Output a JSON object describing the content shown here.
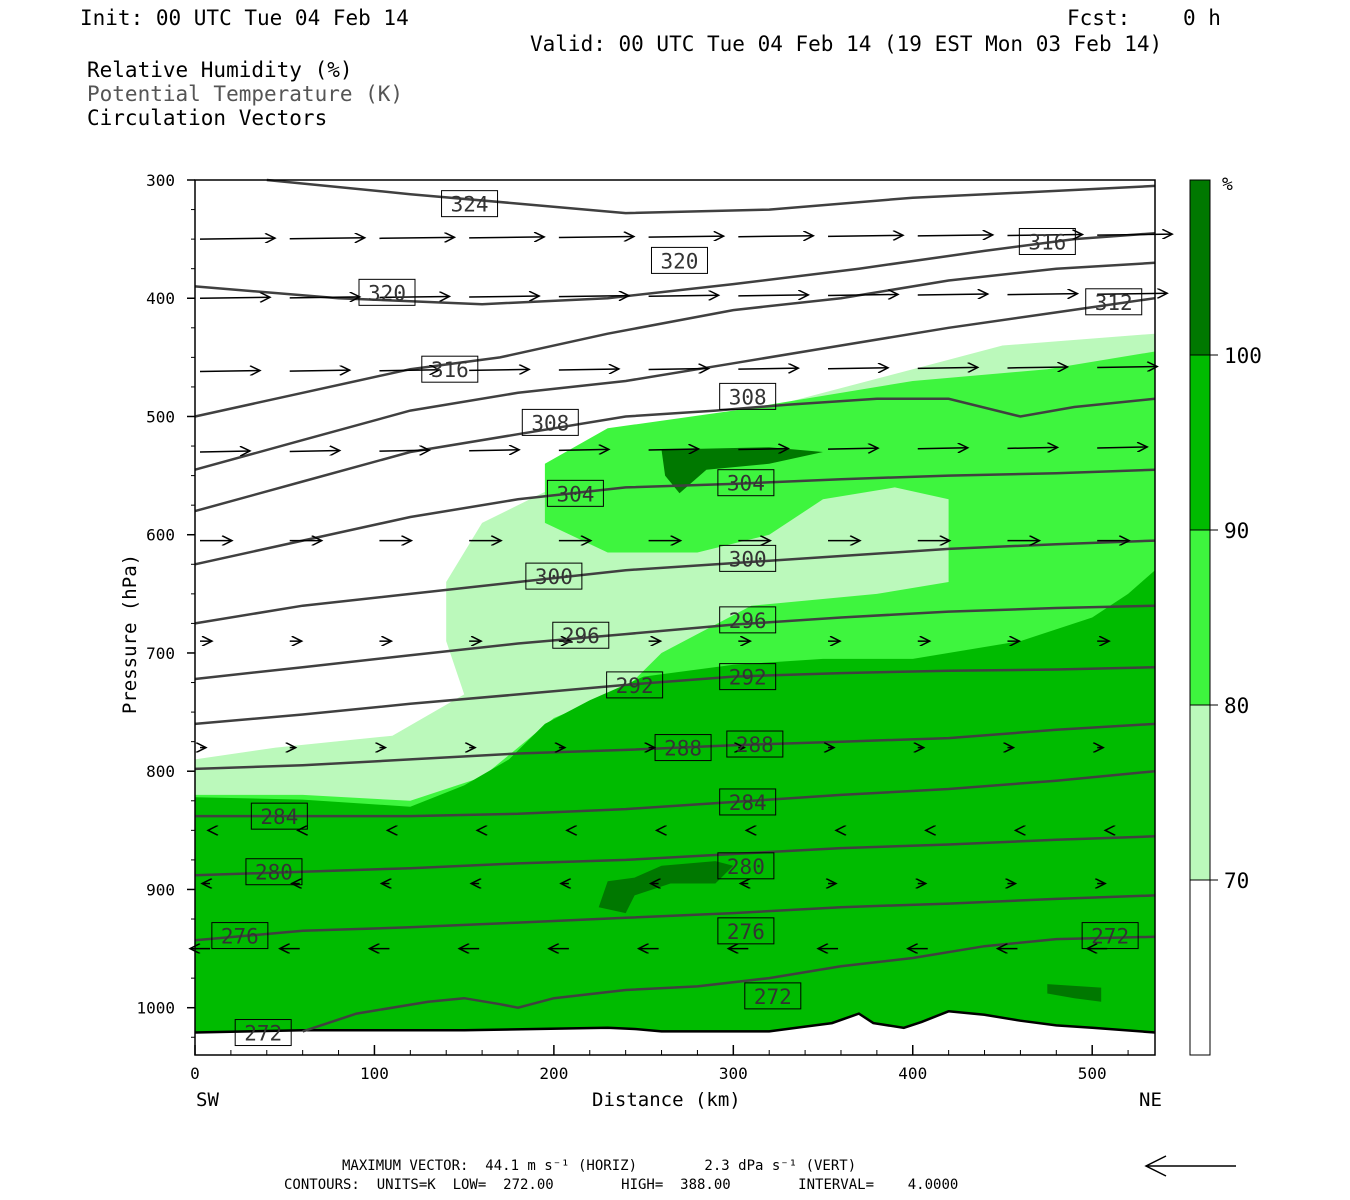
{
  "header": {
    "init": "Init: 00 UTC Tue 04 Feb 14",
    "fcst_label": "Fcst:",
    "fcst_value": "0 h",
    "valid": "Valid: 00 UTC Tue 04 Feb 14 (19 EST Mon 03 Feb 14)"
  },
  "legend": {
    "rh": "Relative Humidity (%)",
    "theta": "Potential Temperature (K)",
    "vectors": "Circulation Vectors"
  },
  "footer": {
    "max_vector": "MAXIMUM VECTOR:  44.1 m s⁻¹ (HORIZ)        2.3 dPa s⁻¹ (VERT)",
    "contours": "CONTOURS:  UNITS=K  LOW=  272.00        HIGH=  388.00        INTERVAL=    4.0000"
  },
  "colors": {
    "rh_70_80": "#bbf9bb",
    "rh_80_90": "#3ef53e",
    "rh_90_100": "#00bb00",
    "rh_100": "#007800",
    "theta_line": "#404040",
    "vector": "#000000"
  },
  "chart_data": {
    "type": "cross-section",
    "title": "Relative Humidity (%), Potential Temperature (K), Circulation Vectors",
    "xlabel": "Distance (km)",
    "ylabel": "Pressure (hPa)",
    "xlim": [
      0,
      535
    ],
    "ylim": [
      1040,
      300
    ],
    "x_ticks": [
      0,
      100,
      200,
      300,
      400,
      500
    ],
    "y_ticks": [
      300,
      400,
      500,
      600,
      700,
      800,
      900,
      1000
    ],
    "endpoints": [
      "SW",
      "NE"
    ],
    "colorbar": {
      "unit": "%",
      "levels": [
        70,
        80,
        90,
        100
      ],
      "tick_labels": [
        "70",
        "80",
        "90",
        "100"
      ]
    },
    "rh_regions": [
      {
        "level": "70-80",
        "points": [
          [
            0,
            790
          ],
          [
            45,
            780
          ],
          [
            110,
            770
          ],
          [
            150,
            735
          ],
          [
            140,
            690
          ],
          [
            140,
            640
          ],
          [
            160,
            590
          ],
          [
            200,
            560
          ],
          [
            230,
            530
          ],
          [
            300,
            500
          ],
          [
            400,
            460
          ],
          [
            450,
            440
          ],
          [
            535,
            430
          ],
          [
            535,
            1040
          ],
          [
            0,
            1040
          ]
        ]
      },
      {
        "level": "80-90",
        "points": [
          [
            0,
            820
          ],
          [
            60,
            820
          ],
          [
            120,
            825
          ],
          [
            160,
            805
          ],
          [
            180,
            780
          ],
          [
            200,
            755
          ],
          [
            240,
            730
          ],
          [
            260,
            700
          ],
          [
            310,
            660
          ],
          [
            380,
            650
          ],
          [
            420,
            640
          ],
          [
            420,
            570
          ],
          [
            390,
            560
          ],
          [
            350,
            570
          ],
          [
            320,
            600
          ],
          [
            280,
            615
          ],
          [
            230,
            615
          ],
          [
            195,
            590
          ],
          [
            195,
            540
          ],
          [
            230,
            510
          ],
          [
            300,
            495
          ],
          [
            400,
            470
          ],
          [
            475,
            460
          ],
          [
            535,
            445
          ],
          [
            535,
            1040
          ],
          [
            0,
            1040
          ]
        ]
      },
      {
        "level": "90-100",
        "points": [
          [
            0,
            822
          ],
          [
            60,
            824
          ],
          [
            120,
            830
          ],
          [
            150,
            812
          ],
          [
            175,
            790
          ],
          [
            195,
            760
          ],
          [
            220,
            740
          ],
          [
            250,
            720
          ],
          [
            300,
            710
          ],
          [
            350,
            705
          ],
          [
            400,
            705
          ],
          [
            460,
            690
          ],
          [
            500,
            670
          ],
          [
            520,
            650
          ],
          [
            535,
            630
          ],
          [
            535,
            1040
          ],
          [
            0,
            1040
          ]
        ]
      },
      {
        "level": "100",
        "points": [
          [
            260,
            528
          ],
          [
            320,
            526
          ],
          [
            350,
            530
          ],
          [
            320,
            540
          ],
          [
            285,
            545
          ],
          [
            270,
            565
          ],
          [
            262,
            550
          ]
        ]
      },
      {
        "level": "100",
        "points": [
          [
            230,
            893
          ],
          [
            245,
            890
          ],
          [
            260,
            880
          ],
          [
            290,
            876
          ],
          [
            300,
            880
          ],
          [
            290,
            895
          ],
          [
            265,
            895
          ],
          [
            245,
            905
          ],
          [
            240,
            920
          ],
          [
            225,
            915
          ]
        ]
      },
      {
        "level": "100",
        "points": [
          [
            475,
            980
          ],
          [
            505,
            983
          ],
          [
            505,
            995
          ],
          [
            490,
            992
          ],
          [
            475,
            988
          ]
        ]
      }
    ],
    "theta_contours": [
      {
        "label": "324",
        "label_pos": [
          153,
          320
        ],
        "points": [
          [
            40,
            300
          ],
          [
            120,
            312
          ],
          [
            180,
            320
          ],
          [
            240,
            328
          ],
          [
            320,
            325
          ],
          [
            400,
            315
          ],
          [
            470,
            310
          ],
          [
            535,
            305
          ]
        ]
      },
      {
        "label": "320",
        "label_pos": [
          107,
          395
        ],
        "points": [
          [
            0,
            390
          ],
          [
            80,
            400
          ],
          [
            160,
            405
          ],
          [
            230,
            400
          ],
          [
            300,
            388
          ],
          [
            370,
            375
          ],
          [
            440,
            360
          ],
          [
            490,
            350
          ],
          [
            535,
            345
          ]
        ]
      },
      {
        "label": "320",
        "label_pos": [
          270,
          368
        ],
        "points": null
      },
      {
        "label": "316",
        "label_pos": [
          475,
          352
        ],
        "points": null
      },
      {
        "label": "316",
        "label_pos": [
          142,
          460
        ],
        "points": [
          [
            0,
            500
          ],
          [
            60,
            480
          ],
          [
            120,
            460
          ],
          [
            170,
            450
          ],
          [
            230,
            430
          ],
          [
            300,
            410
          ],
          [
            360,
            400
          ],
          [
            420,
            385
          ],
          [
            480,
            375
          ],
          [
            535,
            370
          ]
        ]
      },
      {
        "label": "312",
        "label_pos": [
          512,
          403
        ],
        "points": [
          [
            0,
            545
          ],
          [
            60,
            520
          ],
          [
            120,
            495
          ],
          [
            180,
            480
          ],
          [
            240,
            470
          ],
          [
            300,
            455
          ],
          [
            360,
            440
          ],
          [
            420,
            425
          ],
          [
            480,
            412
          ],
          [
            535,
            400
          ]
        ]
      },
      {
        "label": "308",
        "label_pos": [
          198,
          505
        ],
        "points": [
          [
            0,
            580
          ],
          [
            60,
            555
          ],
          [
            120,
            530
          ],
          [
            180,
            515
          ],
          [
            240,
            500
          ],
          [
            290,
            495
          ],
          [
            330,
            490
          ],
          [
            380,
            485
          ],
          [
            420,
            485
          ],
          [
            460,
            500
          ],
          [
            490,
            492
          ],
          [
            535,
            485
          ]
        ]
      },
      {
        "label": "308",
        "label_pos": [
          308,
          483
        ],
        "points": null
      },
      {
        "label": "304",
        "label_pos": [
          212,
          565
        ],
        "points": [
          [
            0,
            625
          ],
          [
            60,
            605
          ],
          [
            120,
            585
          ],
          [
            180,
            570
          ],
          [
            240,
            560
          ],
          [
            300,
            557
          ],
          [
            360,
            553
          ],
          [
            420,
            550
          ],
          [
            480,
            548
          ],
          [
            535,
            545
          ]
        ]
      },
      {
        "label": "304",
        "label_pos": [
          307,
          556
        ],
        "points": null
      },
      {
        "label": "300",
        "label_pos": [
          200,
          635
        ],
        "points": [
          [
            0,
            675
          ],
          [
            60,
            660
          ],
          [
            120,
            650
          ],
          [
            180,
            640
          ],
          [
            240,
            630
          ],
          [
            300,
            624
          ],
          [
            360,
            618
          ],
          [
            420,
            612
          ],
          [
            480,
            608
          ],
          [
            535,
            605
          ]
        ]
      },
      {
        "label": "300",
        "label_pos": [
          308,
          620
        ],
        "points": null
      },
      {
        "label": "296",
        "label_pos": [
          215,
          685
        ],
        "points": [
          [
            0,
            722
          ],
          [
            60,
            712
          ],
          [
            120,
            702
          ],
          [
            180,
            692
          ],
          [
            240,
            684
          ],
          [
            300,
            676
          ],
          [
            360,
            670
          ],
          [
            420,
            665
          ],
          [
            480,
            662
          ],
          [
            535,
            660
          ]
        ]
      },
      {
        "label": "296",
        "label_pos": [
          308,
          672
        ],
        "points": null
      },
      {
        "label": "292",
        "label_pos": [
          245,
          727
        ],
        "points": [
          [
            0,
            760
          ],
          [
            60,
            752
          ],
          [
            120,
            743
          ],
          [
            180,
            735
          ],
          [
            240,
            727
          ],
          [
            300,
            720
          ],
          [
            360,
            717
          ],
          [
            420,
            715
          ],
          [
            480,
            714
          ],
          [
            535,
            712
          ]
        ]
      },
      {
        "label": "292",
        "label_pos": [
          308,
          720
        ],
        "points": null
      },
      {
        "label": "288",
        "label_pos": [
          272,
          780
        ],
        "points": [
          [
            0,
            798
          ],
          [
            60,
            795
          ],
          [
            120,
            790
          ],
          [
            180,
            785
          ],
          [
            240,
            782
          ],
          [
            300,
            778
          ],
          [
            360,
            775
          ],
          [
            420,
            772
          ],
          [
            480,
            765
          ],
          [
            535,
            760
          ]
        ]
      },
      {
        "label": "288",
        "label_pos": [
          312,
          777
        ],
        "points": null
      },
      {
        "label": "284",
        "label_pos": [
          47,
          838
        ],
        "points": [
          [
            0,
            838
          ],
          [
            60,
            838
          ],
          [
            120,
            838
          ],
          [
            180,
            836
          ],
          [
            240,
            832
          ],
          [
            300,
            826
          ],
          [
            360,
            820
          ],
          [
            420,
            815
          ],
          [
            480,
            808
          ],
          [
            535,
            800
          ]
        ]
      },
      {
        "label": "284",
        "label_pos": [
          308,
          826
        ],
        "points": null
      },
      {
        "label": "280",
        "label_pos": [
          44,
          885
        ],
        "points": [
          [
            0,
            888
          ],
          [
            60,
            885
          ],
          [
            120,
            882
          ],
          [
            180,
            878
          ],
          [
            240,
            875
          ],
          [
            300,
            870
          ],
          [
            360,
            865
          ],
          [
            420,
            862
          ],
          [
            480,
            858
          ],
          [
            535,
            855
          ]
        ]
      },
      {
        "label": "280",
        "label_pos": [
          307,
          880
        ],
        "points": null
      },
      {
        "label": "276",
        "label_pos": [
          25,
          939
        ],
        "points": [
          [
            0,
            943
          ],
          [
            60,
            935
          ],
          [
            120,
            932
          ],
          [
            180,
            928
          ],
          [
            240,
            924
          ],
          [
            300,
            920
          ],
          [
            360,
            915
          ],
          [
            420,
            912
          ],
          [
            480,
            908
          ],
          [
            535,
            905
          ]
        ]
      },
      {
        "label": "276",
        "label_pos": [
          307,
          935
        ],
        "points": null
      },
      {
        "label": "272",
        "label_pos": [
          322,
          990
        ],
        "points": [
          [
            60,
            1020
          ],
          [
            90,
            1005
          ],
          [
            130,
            995
          ],
          [
            150,
            992
          ],
          [
            170,
            997
          ],
          [
            180,
            1000
          ],
          [
            200,
            992
          ],
          [
            240,
            985
          ],
          [
            280,
            982
          ],
          [
            320,
            975
          ],
          [
            360,
            965
          ],
          [
            400,
            958
          ],
          [
            440,
            948
          ],
          [
            480,
            942
          ],
          [
            535,
            940
          ]
        ]
      },
      {
        "label": "272",
        "label_pos": [
          510,
          939
        ],
        "points": null
      },
      {
        "label": "272",
        "label_pos": [
          38,
          1021
        ],
        "points": null
      }
    ],
    "vector_rows_hPa": [
      350,
      400,
      462,
      530,
      605,
      690,
      780,
      850,
      895,
      950
    ],
    "vector_columns_km": [
      0,
      50,
      100,
      150,
      200,
      250,
      300,
      350,
      400,
      450,
      500
    ]
  }
}
